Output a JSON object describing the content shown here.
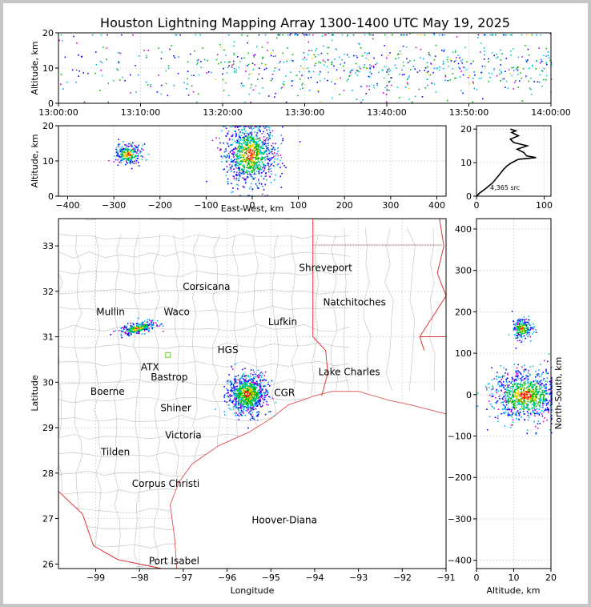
{
  "chart_data": [
    {
      "type": "scatter",
      "panel": "time-altitude",
      "title": "Houston Lightning Mapping Array 1300-1400 UTC May 19, 2025",
      "ylabel": "Altitude, km",
      "xlabel": "",
      "x_tick_labels": [
        "13:00:00",
        "13:10:00",
        "13:20:00",
        "13:30:00",
        "13:40:00",
        "13:50:00",
        "14:00:00"
      ],
      "xlim_minutes": [
        0,
        60
      ],
      "ylim": [
        0,
        20
      ],
      "y_ticks": [
        0,
        10,
        20
      ],
      "grid": true
    },
    {
      "type": "scatter",
      "panel": "east-west-altitude",
      "xlabel": "East-West, km",
      "ylabel": "Altitude, km",
      "xlim": [
        -420,
        420
      ],
      "ylim": [
        0,
        20
      ],
      "x_ticks": [
        -400,
        -300,
        -200,
        -100,
        0,
        100,
        200,
        300,
        400
      ],
      "y_ticks": [
        0,
        10,
        20
      ],
      "clusters": [
        {
          "x": -270,
          "y": 12,
          "sx": 14,
          "sy": 1.5
        },
        {
          "x": -5,
          "y": 12,
          "sx": 28,
          "sy": 4.5
        }
      ],
      "grid": true
    },
    {
      "type": "line",
      "panel": "altitude-histogram",
      "annotation": "4,365 src",
      "xlim": [
        0,
        110
      ],
      "ylim": [
        0,
        21
      ],
      "x_ticks": [
        0,
        100
      ],
      "y_ticks": [
        0,
        10,
        20
      ],
      "profile": [
        [
          0,
          0
        ],
        [
          5,
          1
        ],
        [
          12,
          2
        ],
        [
          18,
          3
        ],
        [
          24,
          4
        ],
        [
          28,
          5
        ],
        [
          32,
          6
        ],
        [
          36,
          7
        ],
        [
          40,
          8
        ],
        [
          45,
          9
        ],
        [
          52,
          10
        ],
        [
          62,
          11
        ],
        [
          88,
          11.5
        ],
        [
          74,
          12
        ],
        [
          70,
          13
        ],
        [
          60,
          14
        ],
        [
          75,
          15
        ],
        [
          55,
          16
        ],
        [
          50,
          17
        ],
        [
          62,
          18
        ],
        [
          52,
          19
        ],
        [
          58,
          19.5
        ],
        [
          50,
          20
        ]
      ],
      "grid": true
    },
    {
      "type": "scatter",
      "panel": "plan-view-map",
      "xlabel": "Longitude",
      "ylabel": "Latitude",
      "xlim": [
        -99.85,
        -91
      ],
      "ylim": [
        25.9,
        33.6
      ],
      "x_ticks": [
        -99,
        -98,
        -97,
        -96,
        -95,
        -94,
        -93,
        -92,
        -91
      ],
      "y_ticks": [
        26,
        27,
        28,
        29,
        30,
        31,
        32,
        33
      ],
      "clusters": [
        {
          "x": -98.05,
          "y": 31.2,
          "sx": 0.16,
          "sy": 0.07
        },
        {
          "x": -95.55,
          "y": 29.75,
          "sx": 0.22,
          "sy": 0.22
        }
      ],
      "cities": [
        {
          "name": "Shreveport",
          "lon": -93.75,
          "lat": 32.52,
          "color": "#000000"
        },
        {
          "name": "Corsicana",
          "lon": -96.47,
          "lat": 32.1,
          "color": "#000000"
        },
        {
          "name": "Natchitoches",
          "lon": -93.09,
          "lat": 31.76,
          "color": "#000000"
        },
        {
          "name": "Mullin",
          "lon": -98.66,
          "lat": 31.55,
          "color": "#f08a54"
        },
        {
          "name": "Waco",
          "lon": -97.15,
          "lat": 31.55,
          "color": "#000000"
        },
        {
          "name": "Lufkin",
          "lon": -94.73,
          "lat": 31.33,
          "color": "#000000"
        },
        {
          "name": "HGS",
          "lon": -95.98,
          "lat": 30.71,
          "color": "#000000"
        },
        {
          "name": "ATX",
          "lon": -97.76,
          "lat": 30.33,
          "color": "#f08a54"
        },
        {
          "name": "Bastrop",
          "lon": -97.32,
          "lat": 30.11,
          "color": "#000000"
        },
        {
          "name": "Lake Charles",
          "lon": -93.21,
          "lat": 30.23,
          "color": "#000000"
        },
        {
          "name": "Boerne",
          "lon": -98.73,
          "lat": 29.79,
          "color": "#000000"
        },
        {
          "name": "CGR",
          "lon": -94.69,
          "lat": 29.77,
          "color": "#e0a32c"
        },
        {
          "name": "Shiner",
          "lon": -97.17,
          "lat": 29.43,
          "color": "#000000"
        },
        {
          "name": "Victoria",
          "lon": -97.0,
          "lat": 28.83,
          "color": "#000000"
        },
        {
          "name": "Tilden",
          "lon": -98.55,
          "lat": 28.46,
          "color": "#000000"
        },
        {
          "name": "Corpus Christi",
          "lon": -97.4,
          "lat": 27.77,
          "color": "#000000"
        },
        {
          "name": "Hoover-Diana",
          "lon": -94.69,
          "lat": 26.97,
          "color": "#1a1adc"
        },
        {
          "name": "Port Isabel",
          "lon": -97.21,
          "lat": 26.07,
          "color": "#000000"
        }
      ],
      "station_marker": {
        "lon": -97.35,
        "lat": 30.6,
        "color": "#66cc33"
      },
      "grid": true
    },
    {
      "type": "scatter",
      "panel": "altitude-north-south",
      "xlabel": "Altitude, km",
      "ylabel": "North-South, km",
      "xlim": [
        0,
        20
      ],
      "ylim": [
        -420,
        425
      ],
      "x_ticks": [
        0,
        10,
        20
      ],
      "y_ticks": [
        -400,
        -300,
        -200,
        -100,
        0,
        100,
        200,
        300,
        400
      ],
      "clusters": [
        {
          "x": 12,
          "y": 160,
          "sx": 1.3,
          "sy": 12
        },
        {
          "x": 13,
          "y": 0,
          "sx": 4.5,
          "sy": 30
        }
      ],
      "grid": true
    }
  ],
  "colors": {
    "source_palette": [
      "#0000ff",
      "#00a0ff",
      "#00c8c8",
      "#00b400",
      "#ffd200",
      "#ff8c00",
      "#ff0000",
      "#cc00cc"
    ],
    "coast": "#e05050",
    "state_border": "#dd2020",
    "county": "#bfbfbf",
    "grid": "#dcdcdc"
  }
}
